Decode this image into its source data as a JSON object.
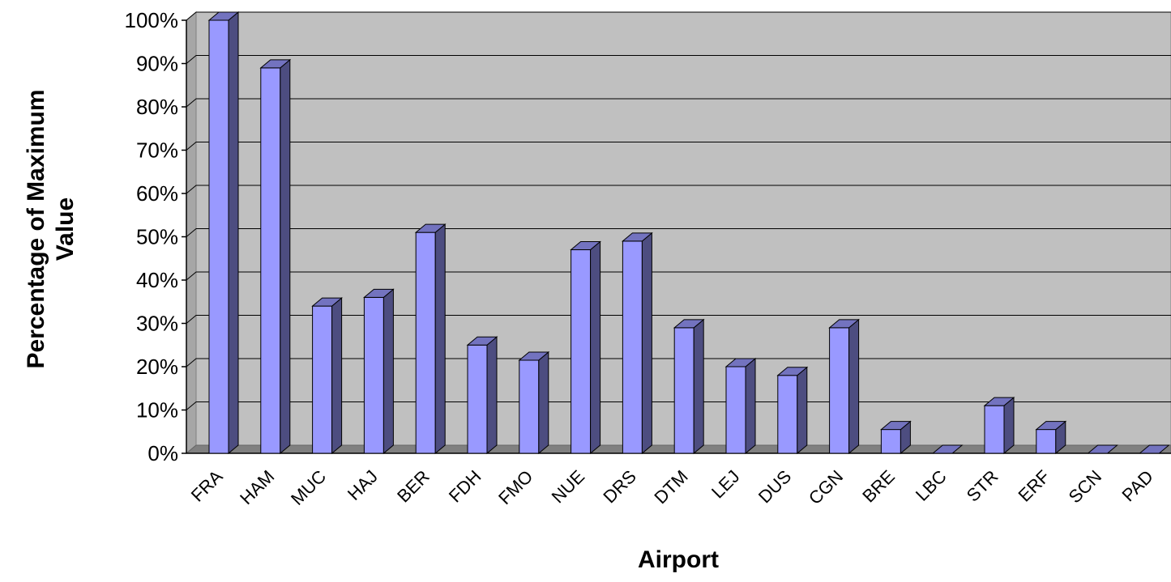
{
  "chart_data": {
    "type": "bar",
    "title": "",
    "xlabel": "Airport",
    "ylabel_lines": [
      "Percentage of Maximum",
      "Value"
    ],
    "categories": [
      "FRA",
      "HAM",
      "MUC",
      "HAJ",
      "BER",
      "FDH",
      "FMO",
      "NUE",
      "DRS",
      "DTM",
      "LEJ",
      "DUS",
      "CGN",
      "BRE",
      "LBC",
      "STR",
      "ERF",
      "SCN",
      "PAD"
    ],
    "values": [
      100,
      89,
      34,
      36,
      51,
      25,
      21.5,
      47,
      49,
      29,
      20,
      18,
      29,
      5.5,
      0,
      11,
      5.5,
      0,
      0
    ],
    "y_ticks": [
      "0%",
      "10%",
      "20%",
      "30%",
      "40%",
      "50%",
      "60%",
      "70%",
      "80%",
      "90%",
      "100%"
    ],
    "ylim": [
      0,
      100
    ],
    "grid": true,
    "legend": "none",
    "colors": {
      "bar_front": "#9999ff",
      "bar_side": "#4d4d80",
      "bar_top": "#7373bf",
      "wall": "#c0c0c0",
      "floor": "#808080",
      "grid": "#000000"
    }
  }
}
